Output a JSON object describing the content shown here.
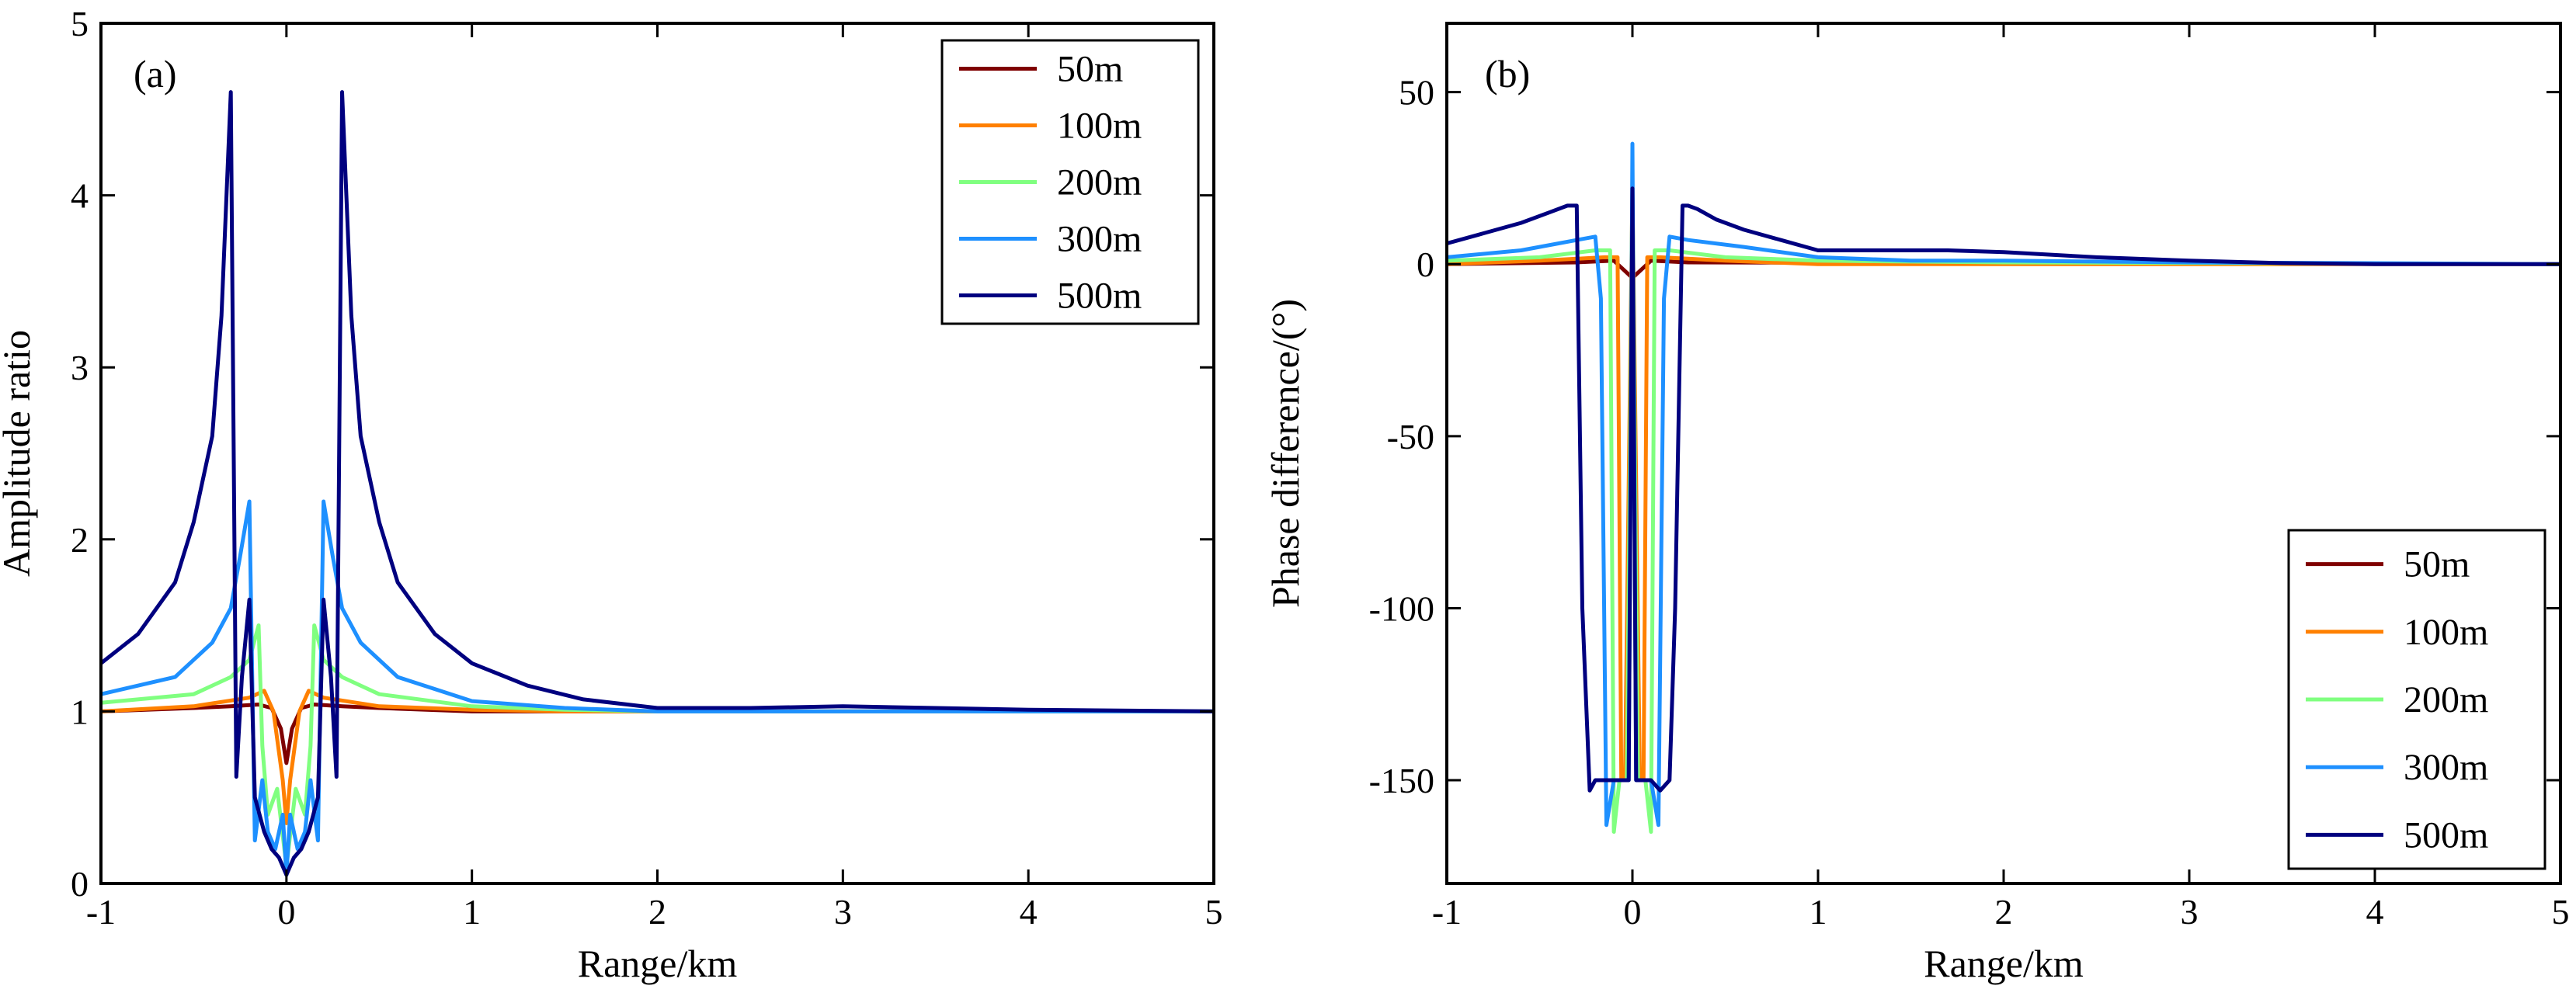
{
  "figure": {
    "panels": [
      "(a)",
      "(b)"
    ]
  },
  "chart_data": [
    {
      "type": "line",
      "panel_label": "(a)",
      "title": "",
      "xlabel": "Range/km",
      "ylabel": "Amplitude ratio",
      "xlim": [
        -1,
        5
      ],
      "ylim": [
        0,
        5
      ],
      "xticks": [
        -1,
        0,
        1,
        2,
        3,
        4,
        5
      ],
      "yticks": [
        0,
        1,
        2,
        3,
        4,
        5
      ],
      "xtick_labels": [
        "-1",
        "0",
        "1",
        "2",
        "3",
        "4",
        "5"
      ],
      "ytick_labels": [
        "0",
        "1",
        "2",
        "3",
        "4",
        "5"
      ],
      "grid": false,
      "legend": "top-right",
      "series": [
        {
          "name": "50m",
          "color": "#7f0000",
          "x": [
            -1,
            -0.5,
            -0.3,
            -0.15,
            -0.08,
            -0.03,
            0,
            0.03,
            0.08,
            0.15,
            0.3,
            0.5,
            1,
            2,
            3,
            5
          ],
          "y": [
            1.0,
            1.02,
            1.03,
            1.04,
            1.02,
            0.9,
            0.7,
            0.9,
            1.02,
            1.04,
            1.03,
            1.02,
            1.0,
            1.0,
            1.0,
            1.0
          ]
        },
        {
          "name": "100m",
          "color": "#ff8000",
          "x": [
            -1,
            -0.5,
            -0.2,
            -0.12,
            -0.07,
            -0.02,
            0,
            0.02,
            0.07,
            0.12,
            0.2,
            0.5,
            1,
            1.5,
            2,
            5
          ],
          "y": [
            1.0,
            1.03,
            1.08,
            1.12,
            1.0,
            0.6,
            0.35,
            0.6,
            1.0,
            1.12,
            1.08,
            1.03,
            1.01,
            1.0,
            1.0,
            1.0
          ]
        },
        {
          "name": "200m",
          "color": "#80ff80",
          "x": [
            -1,
            -0.5,
            -0.3,
            -0.2,
            -0.15,
            -0.13,
            -0.1,
            -0.05,
            0,
            0.05,
            0.1,
            0.13,
            0.15,
            0.2,
            0.3,
            0.5,
            1,
            1.5,
            2,
            5
          ],
          "y": [
            1.05,
            1.1,
            1.2,
            1.3,
            1.5,
            0.8,
            0.4,
            0.55,
            0.1,
            0.55,
            0.4,
            0.8,
            1.5,
            1.3,
            1.2,
            1.1,
            1.03,
            1.01,
            1.0,
            1.0
          ]
        },
        {
          "name": "300m",
          "color": "#1e90ff",
          "x": [
            -1,
            -0.6,
            -0.4,
            -0.3,
            -0.25,
            -0.2,
            -0.17,
            -0.13,
            -0.1,
            -0.06,
            -0.02,
            0,
            0.02,
            0.06,
            0.1,
            0.13,
            0.17,
            0.2,
            0.25,
            0.3,
            0.4,
            0.6,
            1,
            1.5,
            2,
            3,
            5
          ],
          "y": [
            1.1,
            1.2,
            1.4,
            1.6,
            1.9,
            2.22,
            0.25,
            0.6,
            0.3,
            0.2,
            0.4,
            0.05,
            0.4,
            0.2,
            0.3,
            0.6,
            0.25,
            2.22,
            1.9,
            1.6,
            1.4,
            1.2,
            1.06,
            1.02,
            1.0,
            1.0,
            1.0
          ]
        },
        {
          "name": "500m",
          "color": "#00007f",
          "x": [
            -1,
            -0.8,
            -0.6,
            -0.5,
            -0.4,
            -0.35,
            -0.3,
            -0.27,
            -0.24,
            -0.2,
            -0.17,
            -0.12,
            -0.08,
            -0.04,
            0,
            0.04,
            0.08,
            0.12,
            0.17,
            0.2,
            0.24,
            0.27,
            0.3,
            0.35,
            0.4,
            0.5,
            0.6,
            0.8,
            1,
            1.3,
            1.6,
            2,
            2.5,
            3,
            3.5,
            4,
            5
          ],
          "y": [
            1.28,
            1.45,
            1.75,
            2.1,
            2.6,
            3.3,
            4.6,
            0.62,
            1.2,
            1.65,
            0.5,
            0.3,
            0.2,
            0.15,
            0.05,
            0.15,
            0.2,
            0.3,
            0.5,
            1.65,
            1.2,
            0.62,
            4.6,
            3.3,
            2.6,
            2.1,
            1.75,
            1.45,
            1.28,
            1.15,
            1.07,
            1.02,
            1.02,
            1.03,
            1.02,
            1.01,
            1.0
          ]
        }
      ]
    },
    {
      "type": "line",
      "panel_label": "(b)",
      "title": "",
      "xlabel": "Range/km",
      "ylabel": "Phase difference/(°)",
      "xlim": [
        -1,
        5
      ],
      "ylim": [
        -180,
        70
      ],
      "xticks": [
        -1,
        0,
        1,
        2,
        3,
        4,
        5
      ],
      "yticks": [
        -150,
        -100,
        -50,
        0,
        50
      ],
      "xtick_labels": [
        "-1",
        "0",
        "1",
        "2",
        "3",
        "4",
        "5"
      ],
      "ytick_labels": [
        "-150",
        "-100",
        "-50",
        "0",
        "50"
      ],
      "grid": false,
      "legend": "bottom-right",
      "series": [
        {
          "name": "50m",
          "color": "#7f0000",
          "x": [
            -1,
            -0.3,
            -0.1,
            -0.04,
            0,
            0.04,
            0.1,
            0.3,
            5
          ],
          "y": [
            0,
            0.5,
            1,
            -2,
            -4,
            -2,
            1,
            0.5,
            0
          ]
        },
        {
          "name": "100m",
          "color": "#ff8000",
          "x": [
            -1,
            -0.5,
            -0.15,
            -0.08,
            -0.06,
            -0.04,
            0,
            0.04,
            0.06,
            0.08,
            0.15,
            0.5,
            1,
            5
          ],
          "y": [
            0,
            1,
            2,
            2,
            -150,
            -150,
            22,
            -150,
            -150,
            2,
            2,
            1,
            0,
            0
          ]
        },
        {
          "name": "200m",
          "color": "#80ff80",
          "x": [
            -1,
            -0.5,
            -0.2,
            -0.12,
            -0.1,
            -0.07,
            -0.03,
            0,
            0.03,
            0.07,
            0.1,
            0.12,
            0.2,
            0.5,
            1,
            2,
            5
          ],
          "y": [
            1,
            2,
            4,
            4,
            -165,
            -150,
            -150,
            22,
            -150,
            -150,
            -165,
            4,
            4,
            2,
            1,
            0.5,
            0
          ]
        },
        {
          "name": "300m",
          "color": "#1e90ff",
          "x": [
            -1,
            -0.6,
            -0.3,
            -0.2,
            -0.17,
            -0.14,
            -0.1,
            -0.05,
            -0.02,
            0,
            0.02,
            0.05,
            0.1,
            0.14,
            0.17,
            0.2,
            0.3,
            0.6,
            1,
            1.5,
            2,
            3,
            5
          ],
          "y": [
            2,
            4,
            7,
            8,
            -10,
            -163,
            -150,
            -150,
            -150,
            35,
            -150,
            -150,
            -150,
            -163,
            -10,
            8,
            7,
            5,
            2,
            1,
            1,
            0.5,
            0
          ]
        },
        {
          "name": "500m",
          "color": "#00007f",
          "x": [
            -1,
            -0.8,
            -0.6,
            -0.45,
            -0.35,
            -0.3,
            -0.27,
            -0.23,
            -0.2,
            -0.15,
            -0.1,
            -0.05,
            -0.02,
            0,
            0.02,
            0.05,
            0.1,
            0.15,
            0.2,
            0.23,
            0.27,
            0.3,
            0.35,
            0.45,
            0.6,
            0.8,
            1,
            1.2,
            1.4,
            1.7,
            2,
            2.5,
            3,
            3.5,
            4,
            5
          ],
          "y": [
            6,
            9,
            12,
            15,
            17,
            17,
            -100,
            -153,
            -150,
            -150,
            -150,
            -150,
            -150,
            22,
            -150,
            -150,
            -150,
            -153,
            -150,
            -100,
            17,
            17,
            16,
            13,
            10,
            7,
            4,
            4,
            4,
            4,
            3.5,
            2,
            1,
            0.3,
            0,
            0
          ]
        }
      ]
    }
  ]
}
